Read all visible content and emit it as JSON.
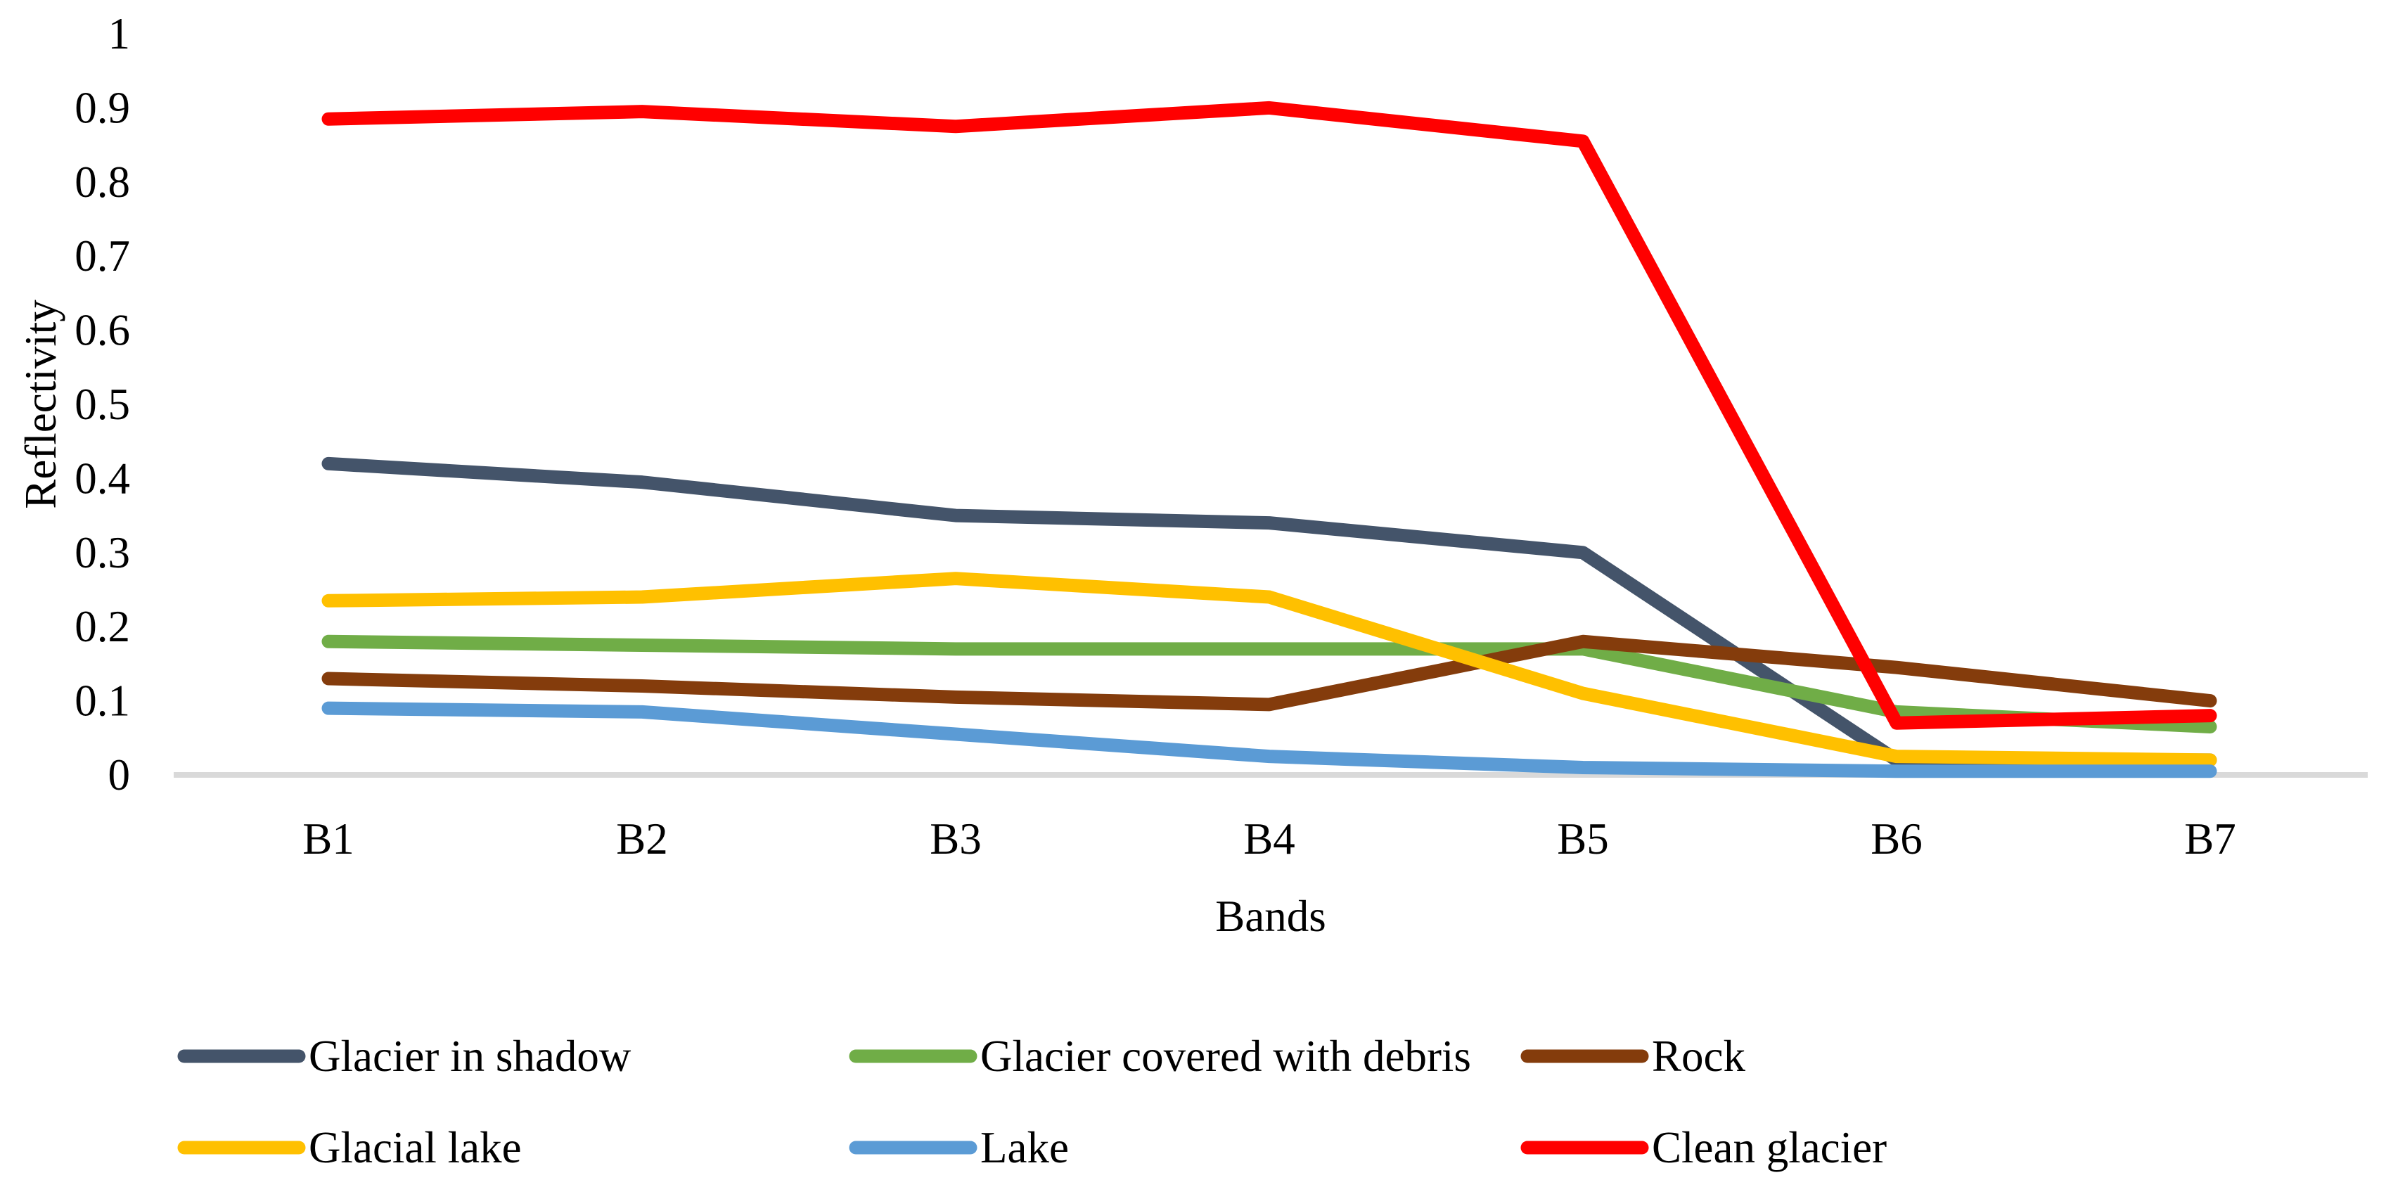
{
  "chart_data": {
    "type": "line",
    "title": "",
    "xlabel": "Bands",
    "ylabel": "Reflectivity",
    "categories": [
      "B1",
      "B2",
      "B3",
      "B4",
      "B5",
      "B6",
      "B7"
    ],
    "ylim": [
      0,
      1
    ],
    "yticks": [
      "0",
      "0.1",
      "0.2",
      "0.3",
      "0.4",
      "0.5",
      "0.6",
      "0.7",
      "0.8",
      "0.9",
      "1"
    ],
    "grid": false,
    "legend_position": "bottom",
    "axis_line_color": "#D9D9D9",
    "text_color": "#000000",
    "series": [
      {
        "name": "Glacier in shadow",
        "color": "#44546A",
        "values": [
          0.42,
          0.395,
          0.35,
          0.34,
          0.3,
          0.02,
          0.02
        ]
      },
      {
        "name": "Glacier covered with debris",
        "color": "#70AD47",
        "values": [
          0.18,
          0.175,
          0.17,
          0.17,
          0.17,
          0.085,
          0.065
        ]
      },
      {
        "name": "Rock",
        "color": "#843C0C",
        "values": [
          0.13,
          0.12,
          0.105,
          0.095,
          0.18,
          0.145,
          0.1
        ]
      },
      {
        "name": "Glacial lake",
        "color": "#FFC000",
        "values": [
          0.235,
          0.24,
          0.265,
          0.24,
          0.11,
          0.025,
          0.02
        ]
      },
      {
        "name": "Lake",
        "color": "#5B9BD5",
        "values": [
          0.09,
          0.085,
          0.055,
          0.025,
          0.01,
          0.005,
          0.005
        ]
      },
      {
        "name": "Clean glacier",
        "color": "#FF0000",
        "values": [
          0.885,
          0.895,
          0.875,
          0.9,
          0.855,
          0.07,
          0.08
        ]
      }
    ],
    "legend": {
      "rows": [
        [
          "Glacier in shadow",
          "Glacier covered with debris",
          "Rock"
        ],
        [
          "Glacial lake",
          "Lake",
          "Clean glacier"
        ]
      ]
    }
  }
}
